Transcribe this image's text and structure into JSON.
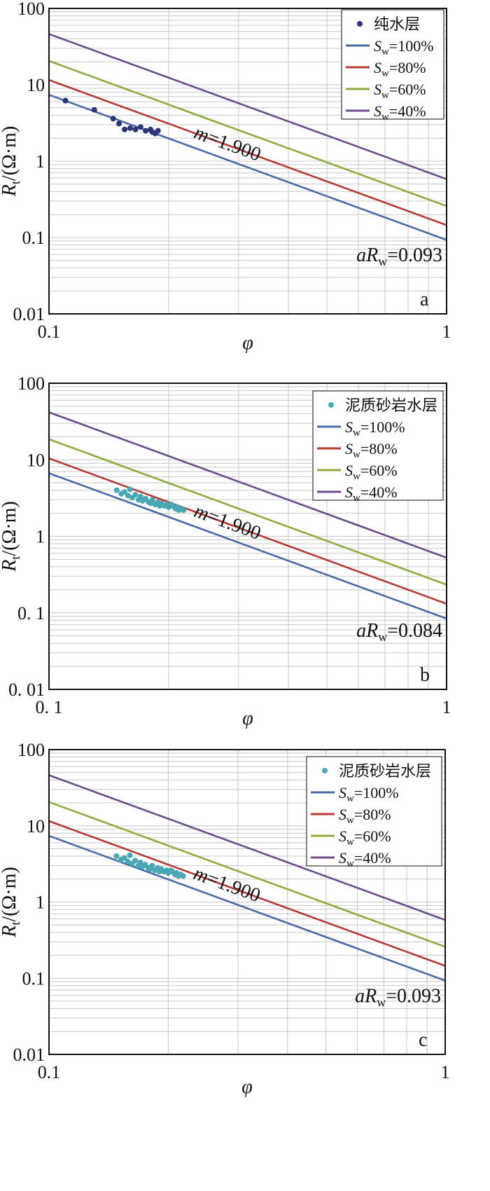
{
  "chart_data": [
    {
      "type": "scatter",
      "panel_label": "a",
      "xlabel": "φ",
      "ylabel": {
        "main": "R",
        "sub": "t",
        "unit": "/(Ω·m)"
      },
      "x_scale": "log",
      "y_scale": "log",
      "xlim": [
        0.1,
        1
      ],
      "ylim": [
        0.01,
        100
      ],
      "x_tick_labels": [
        "0.1",
        "1"
      ],
      "y_tick_labels": [
        "0.01",
        "0.1",
        "1",
        "10",
        "100"
      ],
      "grid": true,
      "legend_position": "top-right",
      "annotations": {
        "slope": "m=1.900",
        "intercept_prefix": "aR",
        "intercept_sub": "w",
        "intercept_value": "=0.093"
      },
      "m": 1.9,
      "aRw": 0.093,
      "scatter_series": {
        "name": "纯水层",
        "color": "#2b3577",
        "points": [
          [
            0.11,
            6.2
          ],
          [
            0.13,
            4.7
          ],
          [
            0.145,
            3.6
          ],
          [
            0.15,
            3.1
          ],
          [
            0.155,
            2.6
          ],
          [
            0.16,
            2.7
          ],
          [
            0.165,
            2.6
          ],
          [
            0.17,
            2.8
          ],
          [
            0.175,
            2.5
          ],
          [
            0.18,
            2.6
          ],
          [
            0.182,
            2.4
          ],
          [
            0.185,
            2.3
          ],
          [
            0.188,
            2.5
          ]
        ]
      },
      "line_series": [
        {
          "sw_label": "S",
          "sw_sub": "w",
          "sw_value": "=100%",
          "sw": 1.0,
          "color": "#4a6aa6"
        },
        {
          "sw_label": "S",
          "sw_sub": "w",
          "sw_value": "=80%",
          "sw": 0.8,
          "color": "#b33a35"
        },
        {
          "sw_label": "S",
          "sw_sub": "w",
          "sw_value": "=60%",
          "sw": 0.6,
          "color": "#8fab3f"
        },
        {
          "sw_label": "S",
          "sw_sub": "w",
          "sw_value": "=40%",
          "sw": 0.4,
          "color": "#6e4b8a"
        }
      ]
    },
    {
      "type": "scatter",
      "panel_label": "b",
      "xlabel": "φ",
      "ylabel": {
        "main": "R",
        "sub": "t",
        "unit": "/(Ω·m)"
      },
      "x_scale": "log",
      "y_scale": "log",
      "xlim": [
        0.1,
        1
      ],
      "ylim": [
        0.01,
        100
      ],
      "x_tick_labels": [
        "0. 1",
        "1"
      ],
      "y_tick_labels": [
        "0. 01",
        "0. 1",
        "1",
        "10",
        "100"
      ],
      "grid": true,
      "legend_position": "top-right",
      "annotations": {
        "slope": "m=1.900",
        "intercept_prefix": "aR",
        "intercept_sub": "w",
        "intercept_value": "=0.084"
      },
      "m": 1.9,
      "aRw": 0.084,
      "scatter_series": {
        "name": "泥质砂岩水层",
        "color": "#4aa7b4",
        "points": [
          [
            0.148,
            4.0
          ],
          [
            0.152,
            3.6
          ],
          [
            0.155,
            3.8
          ],
          [
            0.158,
            3.4
          ],
          [
            0.16,
            4.1
          ],
          [
            0.162,
            3.2
          ],
          [
            0.165,
            3.5
          ],
          [
            0.168,
            3.0
          ],
          [
            0.17,
            3.3
          ],
          [
            0.172,
            2.9
          ],
          [
            0.175,
            3.1
          ],
          [
            0.178,
            2.8
          ],
          [
            0.18,
            2.7
          ],
          [
            0.182,
            3.0
          ],
          [
            0.185,
            2.6
          ],
          [
            0.188,
            2.8
          ],
          [
            0.19,
            2.5
          ],
          [
            0.192,
            2.7
          ],
          [
            0.195,
            2.5
          ],
          [
            0.198,
            2.6
          ],
          [
            0.2,
            2.4
          ],
          [
            0.203,
            2.6
          ],
          [
            0.205,
            2.5
          ],
          [
            0.208,
            2.3
          ],
          [
            0.21,
            2.4
          ],
          [
            0.212,
            2.2
          ],
          [
            0.215,
            2.3
          ],
          [
            0.218,
            2.2
          ]
        ]
      },
      "line_series": [
        {
          "sw_label": "S",
          "sw_sub": "w",
          "sw_value": "=100%",
          "sw": 1.0,
          "color": "#4a6aa6"
        },
        {
          "sw_label": "S",
          "sw_sub": "w",
          "sw_value": "=80%",
          "sw": 0.8,
          "color": "#b33a35"
        },
        {
          "sw_label": "S",
          "sw_sub": "w",
          "sw_value": "=60%",
          "sw": 0.6,
          "color": "#8fab3f"
        },
        {
          "sw_label": "S",
          "sw_sub": "w",
          "sw_value": "=40%",
          "sw": 0.4,
          "color": "#6e4b8a"
        }
      ]
    },
    {
      "type": "scatter",
      "panel_label": "c",
      "xlabel": "φ",
      "ylabel": {
        "main": "R",
        "sub": "t",
        "unit": "/(Ω·m)"
      },
      "x_scale": "log",
      "y_scale": "log",
      "xlim": [
        0.1,
        1
      ],
      "ylim": [
        0.01,
        100
      ],
      "x_tick_labels": [
        "0.1",
        "1"
      ],
      "y_tick_labels": [
        "0.01",
        "0.1",
        "1",
        "10",
        "100"
      ],
      "grid": true,
      "legend_position": "top-right",
      "annotations": {
        "slope": "m=1.900",
        "intercept_prefix": "aR",
        "intercept_sub": "w",
        "intercept_value": "=0.093"
      },
      "m": 1.9,
      "aRw": 0.093,
      "scatter_series": {
        "name": "泥质砂岩水层",
        "color": "#4aa7b4",
        "points": [
          [
            0.148,
            4.0
          ],
          [
            0.152,
            3.6
          ],
          [
            0.155,
            3.8
          ],
          [
            0.158,
            3.4
          ],
          [
            0.16,
            4.1
          ],
          [
            0.162,
            3.2
          ],
          [
            0.165,
            3.5
          ],
          [
            0.168,
            3.0
          ],
          [
            0.17,
            3.3
          ],
          [
            0.172,
            2.9
          ],
          [
            0.175,
            3.1
          ],
          [
            0.178,
            2.8
          ],
          [
            0.18,
            2.7
          ],
          [
            0.182,
            3.0
          ],
          [
            0.185,
            2.6
          ],
          [
            0.188,
            2.8
          ],
          [
            0.19,
            2.5
          ],
          [
            0.192,
            2.7
          ],
          [
            0.195,
            2.5
          ],
          [
            0.198,
            2.6
          ],
          [
            0.2,
            2.4
          ],
          [
            0.203,
            2.6
          ],
          [
            0.205,
            2.5
          ],
          [
            0.208,
            2.3
          ],
          [
            0.21,
            2.4
          ],
          [
            0.212,
            2.2
          ],
          [
            0.215,
            2.3
          ],
          [
            0.218,
            2.2
          ]
        ]
      },
      "line_series": [
        {
          "sw_label": "S",
          "sw_sub": "w",
          "sw_value": "=100%",
          "sw": 1.0,
          "color": "#4a6aa6"
        },
        {
          "sw_label": "S",
          "sw_sub": "w",
          "sw_value": "=80%",
          "sw": 0.8,
          "color": "#b33a35"
        },
        {
          "sw_label": "S",
          "sw_sub": "w",
          "sw_value": "=60%",
          "sw": 0.6,
          "color": "#8fab3f"
        },
        {
          "sw_label": "S",
          "sw_sub": "w",
          "sw_value": "=40%",
          "sw": 0.4,
          "color": "#6e4b8a"
        }
      ]
    }
  ]
}
